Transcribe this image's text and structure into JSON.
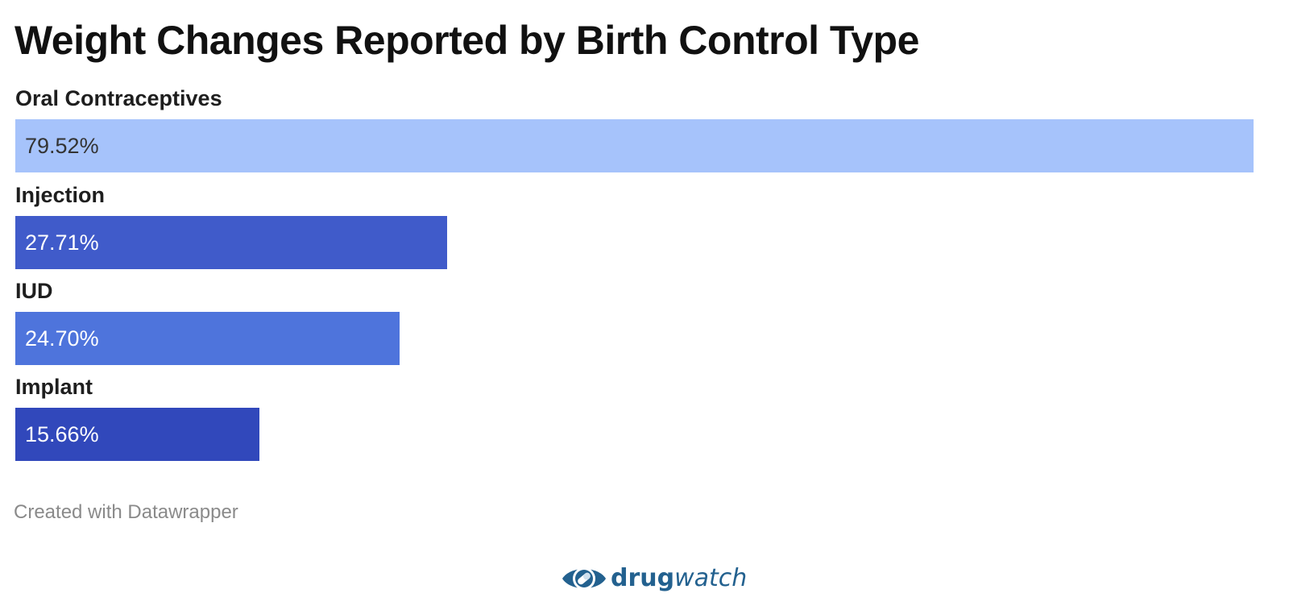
{
  "chart_data": {
    "type": "bar",
    "orientation": "horizontal",
    "title": "Weight Changes Reported by Birth Control Type",
    "categories": [
      "Oral Contraceptives",
      "Injection",
      "IUD",
      "Implant"
    ],
    "values": [
      79.52,
      27.71,
      24.7,
      15.66
    ],
    "value_labels": [
      "79.52%",
      "27.71%",
      "24.70%",
      "15.66%"
    ],
    "unit": "%",
    "xlim": [
      0,
      79.52
    ],
    "grid": false,
    "legend": "none",
    "colors": [
      "#a6c3fb",
      "#405bca",
      "#4e74dc",
      "#3148bb"
    ],
    "label_colors": [
      "#333333",
      "#ffffff",
      "#ffffff",
      "#ffffff"
    ]
  },
  "footer": {
    "credit": "Created with Datawrapper"
  },
  "logo": {
    "name_bold": "drug",
    "name_italic": "watch",
    "color": "#23618f",
    "icon": "eye-pill-icon"
  }
}
